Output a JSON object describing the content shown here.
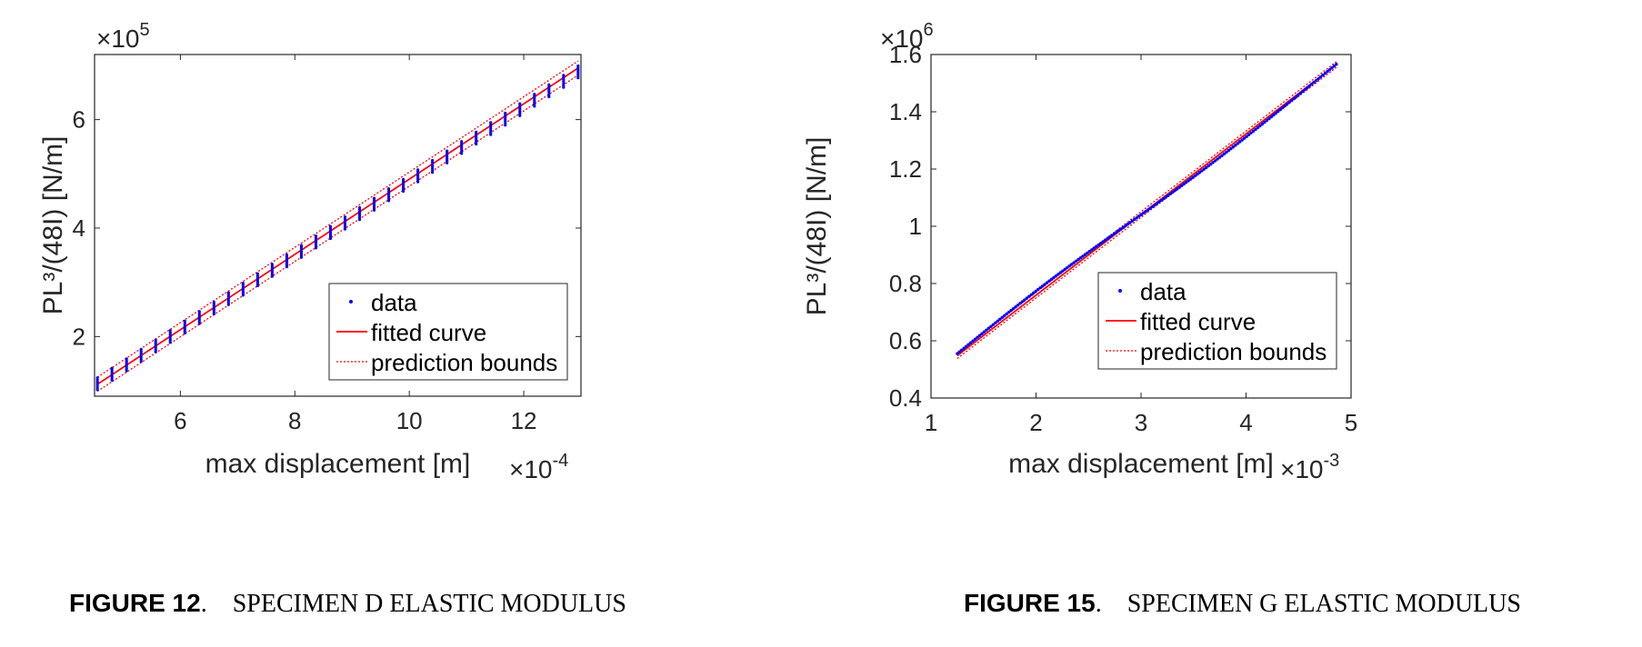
{
  "figures": [
    {
      "caption_number": "FIGURE 12",
      "caption_title": "SPECIMEN D ELASTIC MODULUS",
      "y_multiplier_base": "×10",
      "y_multiplier_exp": "5",
      "x_multiplier_base": "×10",
      "x_multiplier_exp": "-4"
    },
    {
      "caption_number": "FIGURE 15",
      "caption_title": "SPECIMEN G ELASTIC MODULUS",
      "y_multiplier_base": "×10",
      "y_multiplier_exp": "6",
      "x_multiplier_base": "×10",
      "x_multiplier_exp": "-3"
    }
  ],
  "colors": {
    "data": "#0000ff",
    "fit": "#ff0000",
    "bounds": "#ff0000",
    "axis": "#262626"
  },
  "chart_data": [
    {
      "type": "scatter",
      "xlabel": "max displacement [m]",
      "ylabel": "PL³/(48I)  [N/m]",
      "xlim": [
        4.5,
        13.0
      ],
      "ylim": [
        0.9,
        7.2
      ],
      "xticks": [
        6,
        8,
        10,
        12
      ],
      "yticks": [
        2,
        4,
        6
      ],
      "x_scale_note": "×10^-4",
      "y_scale_note": "×10^5",
      "grid": false,
      "legend_position": "lower-right",
      "legend": [
        "data",
        "fitted curve",
        "prediction bounds"
      ],
      "series": [
        {
          "name": "data",
          "style": "points",
          "x_start": 4.55,
          "x_end": 12.95,
          "y_start": 1.13,
          "y_end": 6.88
        },
        {
          "name": "fitted curve",
          "style": "line",
          "x": [
            4.55,
            12.95
          ],
          "y": [
            1.12,
            6.95
          ]
        },
        {
          "name": "prediction bounds",
          "style": "dotted",
          "x": [
            4.55,
            12.95
          ],
          "y_upper": [
            1.25,
            7.08
          ],
          "y_lower": [
            0.99,
            6.82
          ]
        }
      ]
    },
    {
      "type": "scatter",
      "xlabel": "max displacement [m]",
      "ylabel": "PL³/(48I)  [N/m]",
      "xlim": [
        1,
        5
      ],
      "ylim": [
        0.4,
        1.6
      ],
      "xticks": [
        1,
        2,
        3,
        4,
        5
      ],
      "yticks": [
        0.4,
        0.6,
        0.8,
        1,
        1.2,
        1.4,
        1.6
      ],
      "x_scale_note": "×10^-3",
      "y_scale_note": "×10^6",
      "grid": false,
      "legend_position": "lower-right",
      "legend": [
        "data",
        "fitted curve",
        "prediction bounds"
      ],
      "series": [
        {
          "name": "data",
          "style": "points",
          "x_start": 1.25,
          "x_end": 4.86,
          "y_start": 0.555,
          "y_end": 1.56
        },
        {
          "name": "fitted curve",
          "style": "line",
          "x": [
            1.25,
            4.86
          ],
          "y": [
            0.548,
            1.565
          ]
        },
        {
          "name": "prediction bounds",
          "style": "dotted",
          "x": [
            1.25,
            4.86
          ],
          "y_upper": [
            0.558,
            1.575
          ],
          "y_lower": [
            0.538,
            1.555
          ]
        }
      ]
    }
  ]
}
